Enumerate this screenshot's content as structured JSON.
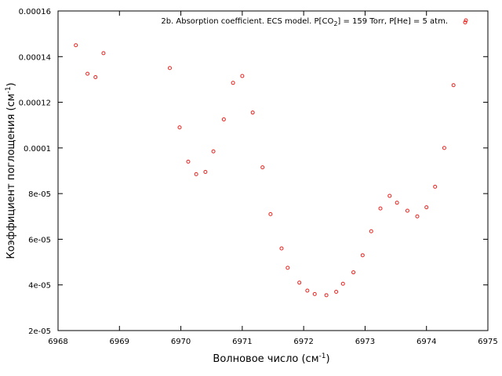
{
  "chart_data": {
    "type": "scatter",
    "legend": {
      "prefix": "2b. Absorption coefficient. ECS model. P[CO",
      "sub": "2",
      "suffix": "] = 159 Torr, P[He] = 5 atm.",
      "position": "top-right"
    },
    "xlabel": {
      "main": "Волновое число (см",
      "sup": "-1",
      "end": ")"
    },
    "ylabel": {
      "main": "Коэффициент поглощения (см",
      "sup": "-1",
      "end": ")"
    },
    "xlim": [
      6968,
      6975
    ],
    "ylim": [
      2e-05,
      0.00016
    ],
    "x_ticks": [
      6968,
      6969,
      6970,
      6971,
      6972,
      6973,
      6974,
      6975
    ],
    "x_tick_labels": [
      "6968",
      "6969",
      "6970",
      "6971",
      "6972",
      "6973",
      "6974",
      "6975"
    ],
    "y_ticks": [
      2e-05,
      4e-05,
      6e-05,
      8e-05,
      0.0001,
      0.00012,
      0.00014,
      0.00016
    ],
    "y_tick_labels": [
      "2e-05",
      "4e-05",
      "6e-05",
      "8e-05",
      "0.0001",
      "0.00012",
      "0.00014",
      "0.00016"
    ],
    "grid": false,
    "marker_color": "#e8231e",
    "series": [
      {
        "x": [
          6968.29,
          6968.48,
          6968.61,
          6968.74,
          6969.82,
          6969.98,
          6970.12,
          6970.25,
          6970.4,
          6970.53,
          6970.7,
          6970.85,
          6971.0,
          6971.17,
          6971.33,
          6971.46,
          6971.64,
          6971.74,
          6971.93,
          6972.06,
          6972.18,
          6972.37,
          6972.53,
          6972.64,
          6972.81,
          6972.96,
          6973.1,
          6973.25,
          6973.4,
          6973.52,
          6973.69,
          6973.85,
          6974.0,
          6974.14,
          6974.29,
          6974.44,
          6974.63
        ],
        "y": [
          0.000145,
          0.0001325,
          0.000131,
          0.0001415,
          0.000135,
          0.000109,
          9.4e-05,
          8.85e-05,
          8.95e-05,
          9.85e-05,
          0.0001125,
          0.0001285,
          0.0001315,
          0.0001155,
          9.15e-05,
          7.1e-05,
          5.6e-05,
          4.75e-05,
          4.1e-05,
          3.75e-05,
          3.6e-05,
          3.55e-05,
          3.7e-05,
          4.05e-05,
          4.55e-05,
          5.3e-05,
          6.35e-05,
          7.35e-05,
          7.9e-05,
          7.6e-05,
          7.25e-05,
          7e-05,
          7.4e-05,
          8.3e-05,
          0.0001,
          0.0001275,
          0.000155
        ]
      }
    ]
  }
}
